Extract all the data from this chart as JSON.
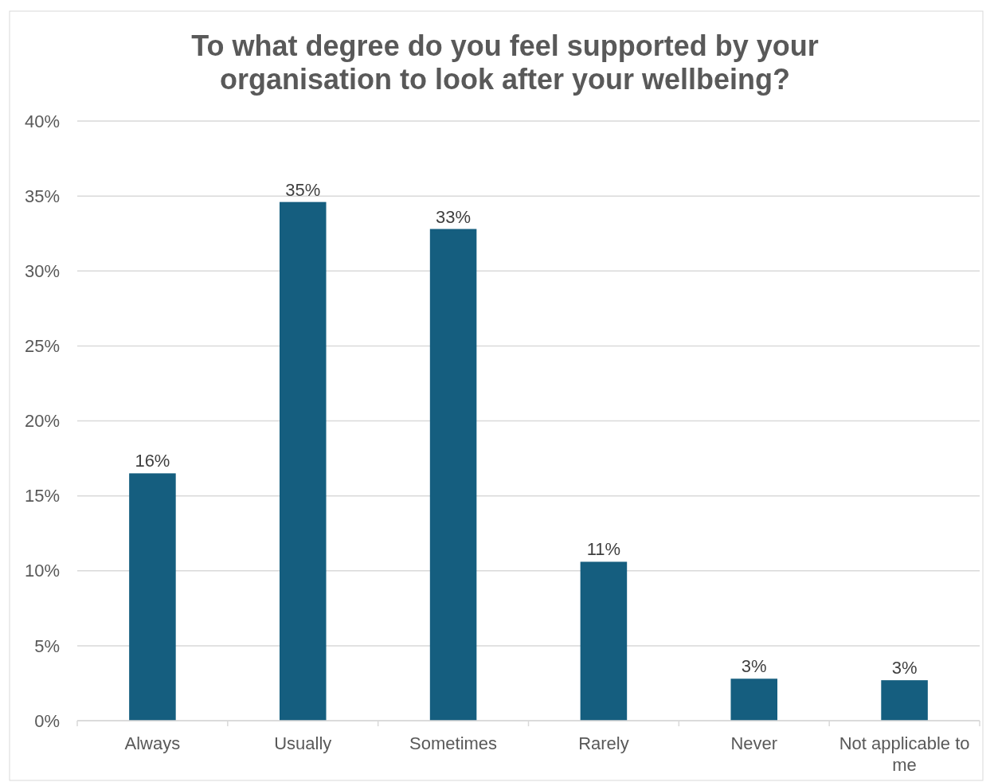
{
  "chart_data": {
    "type": "bar",
    "title": "To what degree do you feel supported by your\norganisation to look after your wellbeing?",
    "categories": [
      "Always",
      "Usually",
      "Sometimes",
      "Rarely",
      "Never",
      "Not applicable to me"
    ],
    "values": [
      16.5,
      34.6,
      32.8,
      10.6,
      2.8,
      2.7
    ],
    "value_labels": [
      "16%",
      "35%",
      "33%",
      "11%",
      "3%",
      "3%"
    ],
    "color": "#155e7f",
    "ylim": [
      0,
      40
    ],
    "yticks": [
      {
        "value": 0,
        "label": "0%"
      },
      {
        "value": 5,
        "label": "5%"
      },
      {
        "value": 10,
        "label": "10%"
      },
      {
        "value": 15,
        "label": "15%"
      },
      {
        "value": 20,
        "label": "20%"
      },
      {
        "value": 25,
        "label": "25%"
      },
      {
        "value": 30,
        "label": "30%"
      },
      {
        "value": 35,
        "label": "35%"
      },
      {
        "value": 40,
        "label": "40%"
      }
    ],
    "grid": "y"
  }
}
